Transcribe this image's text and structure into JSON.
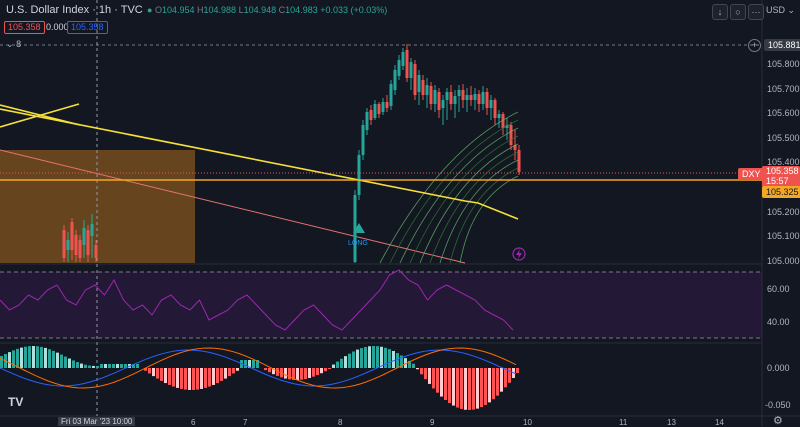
{
  "header": {
    "title": "U.S. Dollar Index · 1h · TVC",
    "ohlc": [
      {
        "label": "O",
        "value": "104.954"
      },
      {
        "label": "H",
        "value": "104.988"
      },
      {
        "label": "L",
        "value": "104.948"
      },
      {
        "label": "C",
        "value": "104.983"
      }
    ],
    "change": "+0.033 (+0.03%)",
    "bid": "105.358",
    "spread": "0.000",
    "ask": "105.358",
    "indicators_count": "8"
  },
  "toolbar": {
    "down_icon": "arrow-down-icon",
    "clear_icon": "circle-icon",
    "more_icon": "more-icon",
    "currency": "USD"
  },
  "price_axis": {
    "labels": [
      "105.800",
      "105.700",
      "105.600",
      "105.500",
      "105.400",
      "105.200",
      "105.100",
      "105.000"
    ],
    "high_marker": "105.881",
    "symbol_tag": "DXY",
    "last_price": "105.358",
    "countdown": "15:57",
    "line_price": "105.325"
  },
  "rsi_axis": {
    "labels": [
      "60.00",
      "40.00"
    ]
  },
  "macd_axis": {
    "labels": [
      "0.000",
      "-0.050"
    ]
  },
  "time_axis": {
    "labels": [
      "6",
      "7",
      "8",
      "9",
      "10",
      "11",
      "13",
      "14"
    ],
    "cursor_label": "Fri 03 Mar '23   10:00"
  },
  "annotations": {
    "long_label": "LONG"
  },
  "logo": "TV",
  "colors": {
    "background": "#131722",
    "up": "#26a69a",
    "down": "#ef5350",
    "trendline": "#f5e03a",
    "horizontal_line": "#f5a623",
    "rsi": "#9c27b0",
    "macd_up_strong": "#26a69a",
    "macd_up_weak": "#b2dfdb",
    "macd_down_strong": "#ff5252",
    "macd_down_weak": "#ffcdd2"
  }
}
